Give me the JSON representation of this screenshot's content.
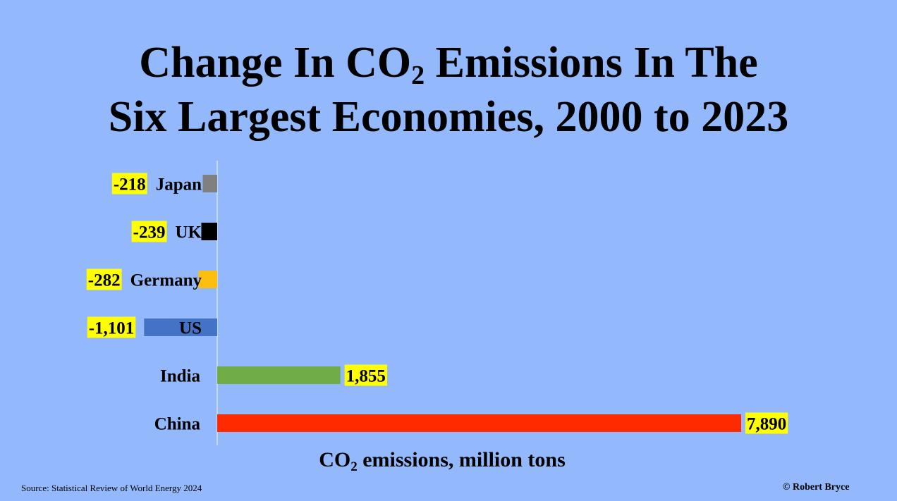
{
  "header": {
    "title_line1_pre": "Change In CO",
    "title_line1_sub": "2",
    "title_line1_post": " Emissions In The",
    "title_line2": "Six Largest Economies, 2000 to 2023"
  },
  "chart_data": {
    "type": "bar",
    "orientation": "horizontal",
    "categories": [
      "Japan",
      "UK",
      "Germany",
      "US",
      "India",
      "China"
    ],
    "values": [
      -218,
      -239,
      -282,
      -1101,
      1855,
      7890
    ],
    "value_labels": [
      "-218",
      "-239",
      "-282",
      "-1,101",
      "1,855",
      "7,890"
    ],
    "colors": [
      "#808080",
      "#000000",
      "#fcbf0f",
      "#4472c4",
      "#70ad47",
      "#ff2a00"
    ],
    "xlabel_pre": "CO",
    "xlabel_sub": "2",
    "xlabel_post": " emissions, million tons",
    "xlim": [
      -1101,
      7890
    ],
    "grid": false,
    "label_highlight_color": "#ffff00"
  },
  "footer": {
    "source": "Source: Statistical Review of World Energy  2024",
    "credit": "© Robert Bryce"
  }
}
